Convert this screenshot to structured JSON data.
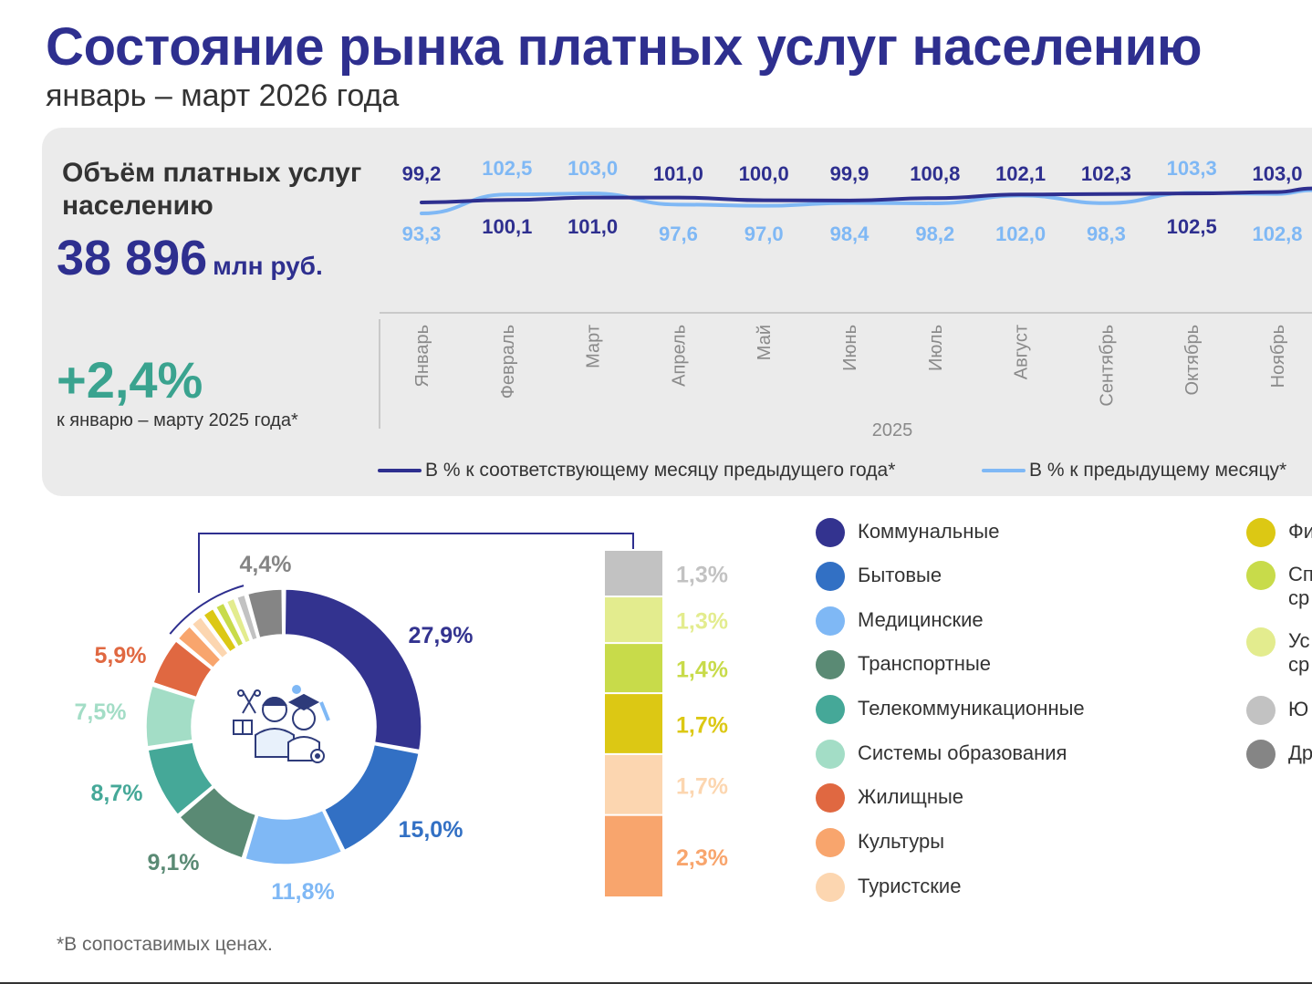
{
  "header": {
    "title": "Состояние рынка платных услуг населению",
    "subtitle": "январь – март 2026 года"
  },
  "summary": {
    "volume_label": "Объём платных услуг населению",
    "volume_value": "38 896",
    "volume_unit": "млн руб.",
    "growth_value": "+2,4%",
    "growth_note": "к январю – марту 2025 года*"
  },
  "footnote": "*В сопоставимых ценах.",
  "colors": {
    "brand": "#2e2f8f",
    "growth": "#3aa38f",
    "series_yoy": "#2e2f8f",
    "series_mom": "#7fb8f5",
    "panel": "#ebebeb"
  },
  "chart_data": [
    {
      "type": "line",
      "categories": [
        "Январь",
        "Февраль",
        "Март",
        "Апрель",
        "Май",
        "Июнь",
        "Июль",
        "Август",
        "Сентябрь",
        "Октябрь",
        "Ноябрь"
      ],
      "xlabel": "2025",
      "series": [
        {
          "name": "В % к соответствующему месяцу предыдущего года*",
          "labels": [
            "99,2",
            "100,1",
            "101,0",
            "101,0",
            "100,0",
            "99,9",
            "100,8",
            "102,1",
            "102,3",
            "102,5",
            "103,0"
          ],
          "values": [
            99.2,
            100.1,
            101.0,
            101.0,
            100.0,
            99.9,
            100.8,
            102.1,
            102.3,
            102.5,
            103.0
          ],
          "label_pos": [
            "above",
            "below",
            "below",
            "above",
            "above",
            "above",
            "above",
            "above",
            "above",
            "below",
            "above"
          ]
        },
        {
          "name": "В % к предыдущему месяцу*",
          "labels": [
            "93,3",
            "102,5",
            "103,0",
            "97,6",
            "97,0",
            "98,4",
            "98,2",
            "102,0",
            "98,3",
            "103,3",
            "102,8"
          ],
          "values": [
            93.3,
            102.5,
            103.0,
            97.6,
            97.0,
            98.4,
            98.2,
            102.0,
            98.3,
            103.3,
            102.8
          ],
          "label_pos": [
            "below",
            "above",
            "above",
            "below",
            "below",
            "below",
            "below",
            "below",
            "below",
            "above",
            "below"
          ]
        }
      ],
      "legend": "bottom"
    },
    {
      "type": "pie",
      "style": "donut",
      "slices": [
        {
          "name": "Коммунальные",
          "label": "27,9%",
          "value": 27.9,
          "color": "#33338f"
        },
        {
          "name": "Бытовые",
          "label": "15,0%",
          "value": 15.0,
          "color": "#3270c4"
        },
        {
          "name": "Медицинские",
          "label": "11,8%",
          "value": 11.8,
          "color": "#7fb8f5"
        },
        {
          "name": "Транспортные",
          "label": "9,1%",
          "value": 9.1,
          "color": "#5a8a74"
        },
        {
          "name": "Телекоммуникационные",
          "label": "8,7%",
          "value": 8.7,
          "color": "#45a898"
        },
        {
          "name": "Системы образования",
          "label": "7,5%",
          "value": 7.5,
          "color": "#a3ddc6"
        },
        {
          "name": "Жилищные",
          "label": "5,9%",
          "value": 5.9,
          "color": "#e06841"
        },
        {
          "name": "Культуры",
          "label": "2,3%",
          "value": 2.3,
          "color": "#f8a56d"
        },
        {
          "name": "Туристские",
          "label": "1,7%",
          "value": 1.7,
          "color": "#fcd6b0"
        },
        {
          "name": "Фи",
          "label": "1,7%",
          "value": 1.7,
          "color": "#dcc814"
        },
        {
          "name": "Сп ср",
          "label": "1,4%",
          "value": 1.4,
          "color": "#c8db4a"
        },
        {
          "name": "Ус ср",
          "label": "1,3%",
          "value": 1.3,
          "color": "#e3ec8e"
        },
        {
          "name": "Ю",
          "label": "1,3%",
          "value": 1.3,
          "color": "#c2c2c2"
        },
        {
          "name": "Др",
          "label": "4,4%",
          "value": 4.4,
          "color": "#858585"
        }
      ],
      "breakout": {
        "slices": [
          "Культуры",
          "Туристские",
          "Фи",
          "Сп ср",
          "Ус ср",
          "Ю"
        ],
        "colors": [
          "#f8a56d",
          "#fcd6b0",
          "#dcc814",
          "#c8db4a",
          "#e3ec8e",
          "#c2c2c2"
        ],
        "values": [
          2.3,
          1.7,
          1.7,
          1.4,
          1.3,
          1.3
        ],
        "labels": [
          "2,3%",
          "1,7%",
          "1,7%",
          "1,4%",
          "1,3%",
          "1,3%"
        ],
        "label_colors": [
          "#f8a56d",
          "#fcd6b0",
          "#dcc814",
          "#c8db4a",
          "#e3ec8e",
          "#c2c2c2"
        ]
      }
    }
  ],
  "legend": {
    "col1": [
      {
        "label": "Коммунальные",
        "color": "#33338f"
      },
      {
        "label": "Бытовые",
        "color": "#3270c4"
      },
      {
        "label": "Медицинские",
        "color": "#7fb8f5"
      },
      {
        "label": "Транспортные",
        "color": "#5a8a74"
      },
      {
        "label": "Телекоммуникационные",
        "color": "#45a898"
      },
      {
        "label": "Системы образования",
        "color": "#a3ddc6"
      },
      {
        "label": "Жилищные",
        "color": "#e06841"
      },
      {
        "label": "Культуры",
        "color": "#f8a56d"
      },
      {
        "label": "Туристские",
        "color": "#fcd6b0"
      }
    ],
    "col2": [
      {
        "label": "Фи",
        "color": "#dcc814"
      },
      {
        "label": "Сп\nср",
        "color": "#c8db4a"
      },
      {
        "label": "Ус\nср",
        "color": "#e3ec8e"
      },
      {
        "label": "Ю",
        "color": "#c2c2c2"
      },
      {
        "label": "Др",
        "color": "#858585"
      }
    ]
  },
  "icons": {
    "center": "people-services-icon"
  }
}
